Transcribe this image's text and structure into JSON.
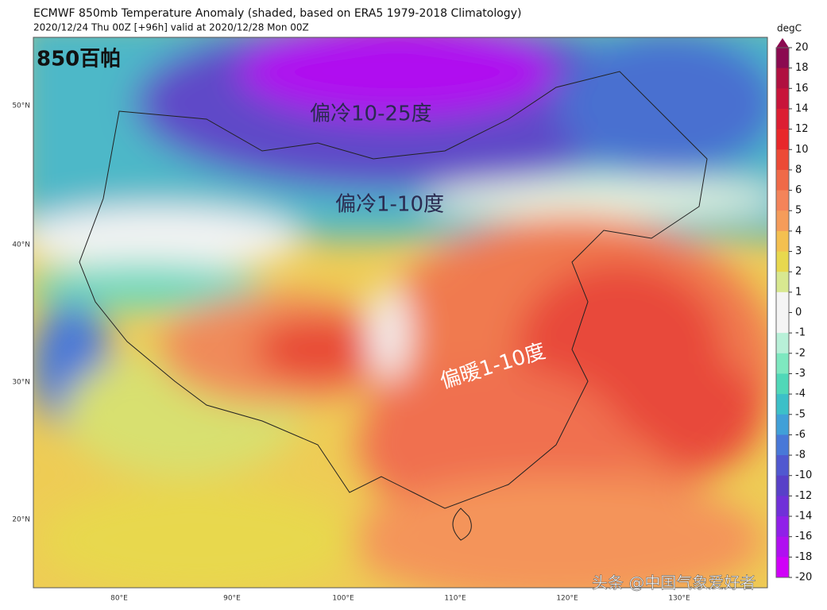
{
  "header": {
    "title": "ECMWF 850mb Temperature Anomaly (shaded, based on ERA5 1979-2018 Climatology)",
    "subtitle": "2020/12/24 Thu 00Z [+96h] valid at 2020/12/28 Mon 00Z"
  },
  "map": {
    "level_label": "850百帕",
    "annotations": [
      "偏冷10-25度",
      "偏冷1-10度",
      "偏暖1-10度"
    ],
    "lat_labels": [
      "50°N",
      "40°N",
      "30°N",
      "20°N"
    ],
    "lon_labels": [
      "80°E",
      "90°E",
      "100°E",
      "110°E",
      "120°E",
      "130°E"
    ]
  },
  "colorbar": {
    "unit": "degC",
    "ticks": [
      20,
      18,
      16,
      14,
      12,
      10,
      8,
      6,
      5,
      4,
      3,
      2,
      1,
      0,
      -1,
      -2,
      -3,
      -4,
      -5,
      -6,
      -8,
      -10,
      -12,
      -14,
      -16,
      -18,
      -20
    ],
    "colors": [
      "#8b0a50",
      "#b01040",
      "#c8143a",
      "#dc1e32",
      "#e8282a",
      "#ec4a36",
      "#f06a48",
      "#f4845a",
      "#f59c5a",
      "#f4c050",
      "#e8d84e",
      "#d8e890",
      "#f4f4f4",
      "#f4f4f4",
      "#b8f0d8",
      "#7ee8c0",
      "#50d8b8",
      "#3cc0c8",
      "#40a0d8",
      "#4878d8",
      "#5058d0",
      "#5840c8",
      "#7030d8",
      "#9020e8",
      "#b010f0",
      "#d000f8"
    ]
  },
  "watermark": "头条 @中国气象爱好者"
}
